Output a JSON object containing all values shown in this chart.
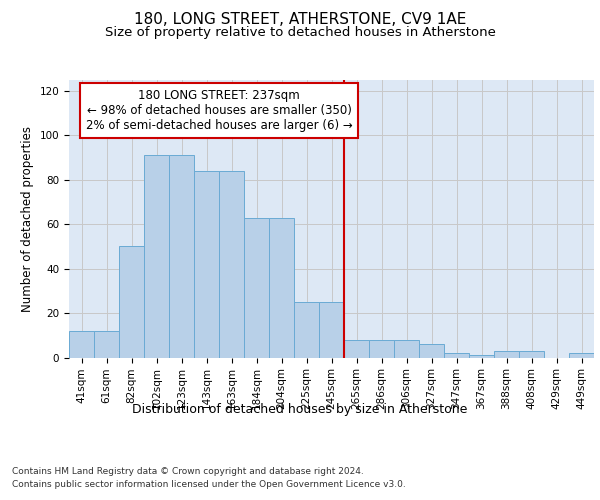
{
  "title": "180, LONG STREET, ATHERSTONE, CV9 1AE",
  "subtitle": "Size of property relative to detached houses in Atherstone",
  "xlabel": "Distribution of detached houses by size in Atherstone",
  "ylabel": "Number of detached properties",
  "categories": [
    "41sqm",
    "61sqm",
    "82sqm",
    "102sqm",
    "123sqm",
    "143sqm",
    "163sqm",
    "184sqm",
    "204sqm",
    "225sqm",
    "245sqm",
    "265sqm",
    "286sqm",
    "306sqm",
    "327sqm",
    "347sqm",
    "367sqm",
    "388sqm",
    "408sqm",
    "429sqm",
    "449sqm"
  ],
  "values": [
    12,
    12,
    50,
    91,
    91,
    84,
    84,
    63,
    63,
    25,
    25,
    8,
    8,
    8,
    6,
    2,
    1,
    3,
    3,
    0,
    2
  ],
  "bar_color": "#b8d0e8",
  "bar_edge_color": "#6aaad4",
  "grid_color": "#c8c8c8",
  "background_color": "#dde8f5",
  "vline_x": 10.5,
  "vline_color": "#cc0000",
  "annotation_line1": "180 LONG STREET: 237sqm",
  "annotation_line2": "← 98% of detached houses are smaller (350)",
  "annotation_line3": "2% of semi-detached houses are larger (6) →",
  "annotation_box_color": "#cc0000",
  "ylim": [
    0,
    125
  ],
  "yticks": [
    0,
    20,
    40,
    60,
    80,
    100,
    120
  ],
  "footer_line1": "Contains HM Land Registry data © Crown copyright and database right 2024.",
  "footer_line2": "Contains public sector information licensed under the Open Government Licence v3.0.",
  "title_fontsize": 11,
  "subtitle_fontsize": 9.5,
  "xlabel_fontsize": 9,
  "ylabel_fontsize": 8.5,
  "tick_fontsize": 7.5,
  "annotation_fontsize": 8.5,
  "footer_fontsize": 6.5
}
